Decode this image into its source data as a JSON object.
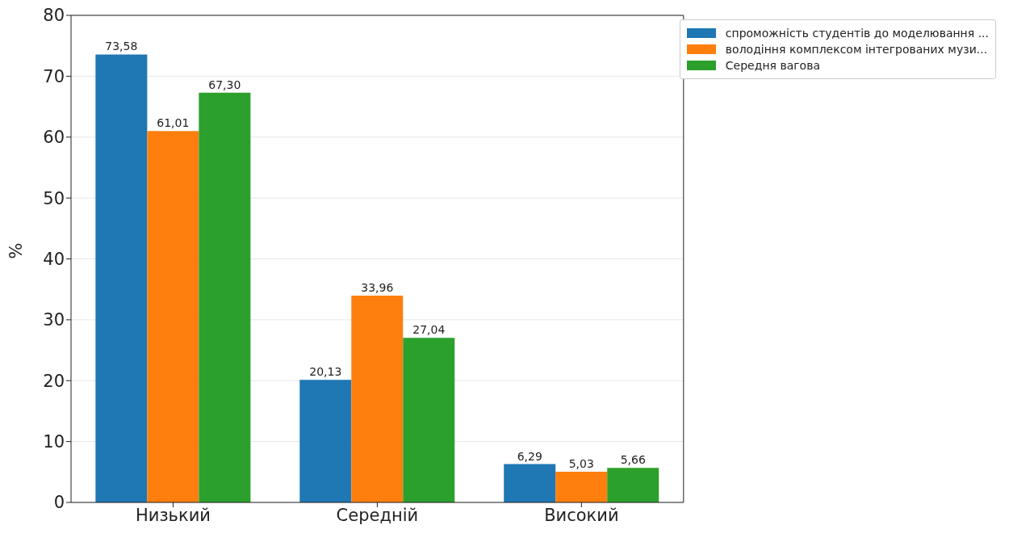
{
  "chart_data": {
    "type": "bar",
    "ylabel": "%",
    "categories": [
      "Низький",
      "Середній",
      "Високий"
    ],
    "series": [
      {
        "name": "спроможність студентів до моделювання ...",
        "color": "#1f77b4",
        "values": [
          73.58,
          20.13,
          6.29
        ],
        "value_labels": [
          "73,58",
          "20,13",
          "6,29"
        ]
      },
      {
        "name": "володіння комплексом інтегрованих музи...",
        "color": "#ff7f0e",
        "values": [
          61.01,
          33.96,
          5.03
        ],
        "value_labels": [
          "61,01",
          "33,96",
          "5,03"
        ]
      },
      {
        "name": "Середня вагова",
        "color": "#2ca02c",
        "values": [
          67.3,
          27.04,
          5.66
        ],
        "value_labels": [
          "67,30",
          "27,04",
          "5,66"
        ]
      }
    ],
    "ylim": [
      0,
      80
    ],
    "yticks": [
      0,
      10,
      20,
      30,
      40,
      50,
      60,
      70,
      80
    ],
    "grid": "y",
    "legend": "top right"
  }
}
